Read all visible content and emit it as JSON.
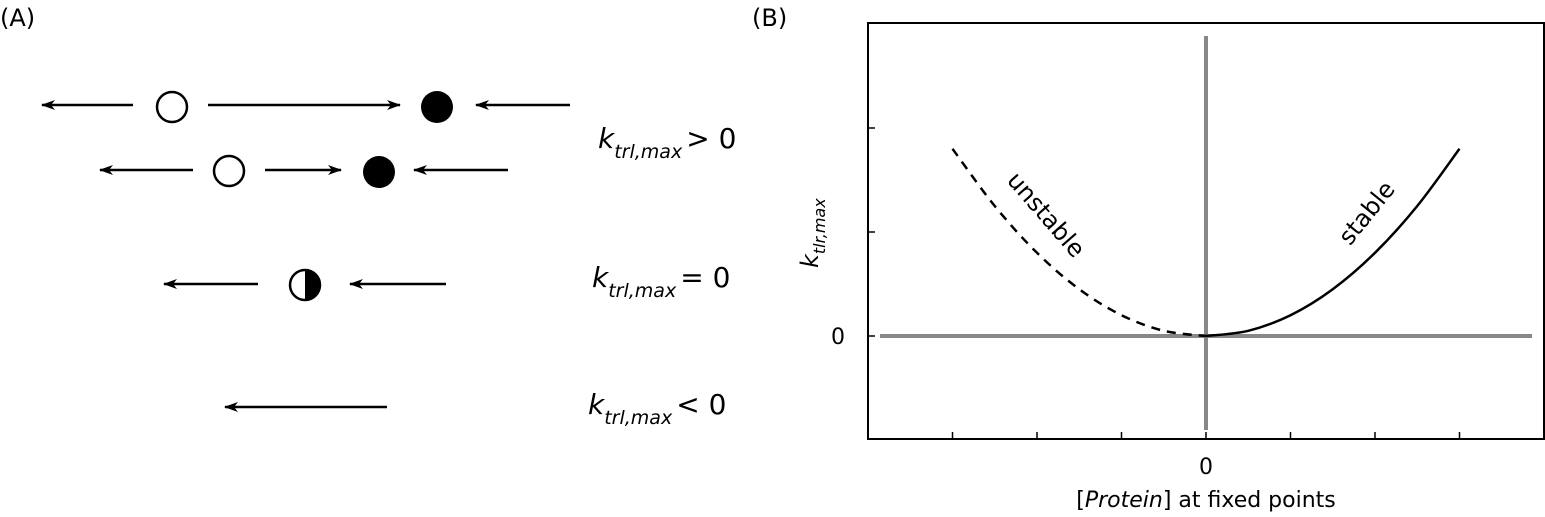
{
  "panel_a": {
    "label": "(A)",
    "rows": [
      {
        "k_main": "k",
        "k_sub": "trl,max",
        "relation": "> 0"
      },
      {
        "k_main": "k",
        "k_sub": "trl,max",
        "relation": "= 0"
      },
      {
        "k_main": "k",
        "k_sub": "trl,max",
        "relation": "< 0"
      }
    ],
    "fixed_point_types": [
      "unstable (open circle)",
      "stable (filled circle)",
      "semi-stable (half-filled circle)"
    ]
  },
  "panel_b": {
    "label": "(B)",
    "xlabel_italic": "Protein",
    "xlabel_prefix": "[",
    "xlabel_suffix": "] at fixed points",
    "ylabel_main": "k",
    "ylabel_sub": "tlr,max",
    "x_tick_zero": "0",
    "y_tick_zero": "0",
    "curve_labels": {
      "unstable": "unstable",
      "stable": "stable"
    }
  },
  "chart_data": {
    "type": "line",
    "title": "",
    "xlabel": "[Protein] at fixed points",
    "ylabel": "k_tlr,max",
    "xlim": [
      -4,
      4
    ],
    "ylim": [
      -1,
      3
    ],
    "x_ticks": [
      -3,
      -2,
      -1,
      0,
      1,
      2,
      3
    ],
    "y_ticks": [
      0,
      1,
      2
    ],
    "grid": false,
    "series": [
      {
        "name": "unstable",
        "style": "dashed",
        "x": [
          -3,
          -2.5,
          -2,
          -1.5,
          -1,
          -0.5,
          0
        ],
        "y": [
          1.8,
          1.25,
          0.8,
          0.45,
          0.2,
          0.05,
          0
        ]
      },
      {
        "name": "stable",
        "style": "solid",
        "x": [
          0,
          0.5,
          1,
          1.5,
          2,
          2.5,
          3
        ],
        "y": [
          0,
          0.05,
          0.2,
          0.45,
          0.8,
          1.25,
          1.8
        ]
      }
    ],
    "reference_lines": {
      "x0": 0,
      "y0": 0
    }
  }
}
